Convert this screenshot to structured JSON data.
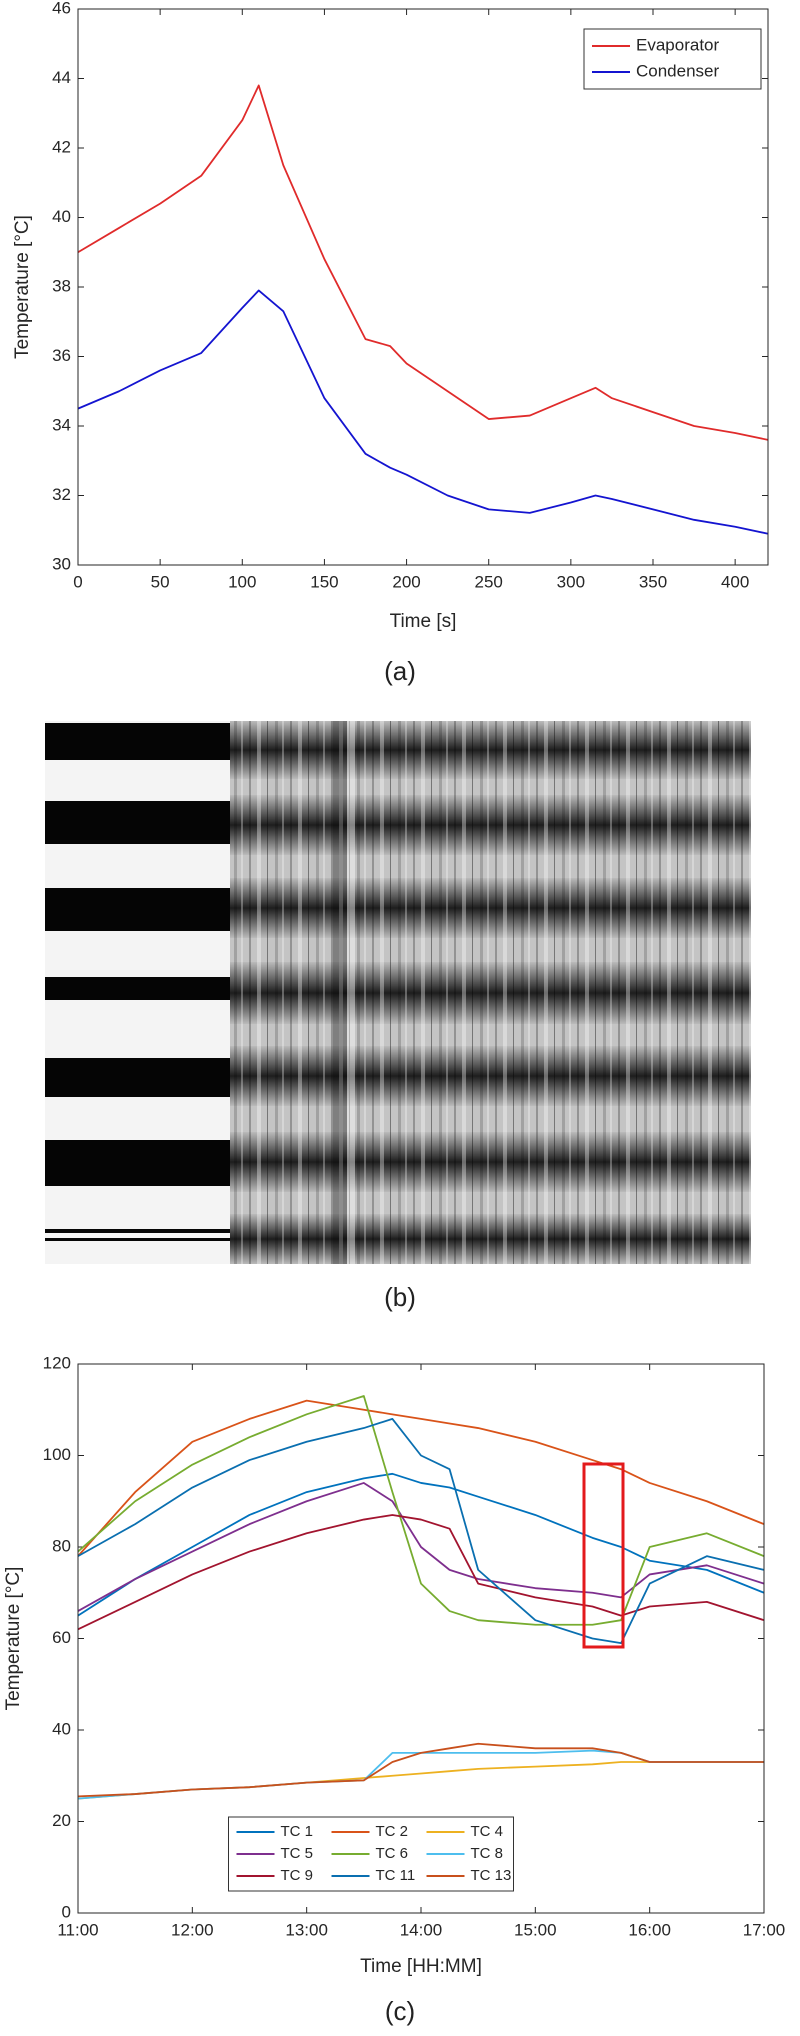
{
  "captions": [
    "(a)",
    "(b)",
    "(c)"
  ],
  "chart_data": [
    {
      "type": "line",
      "x_label": "Time [s]",
      "y_label": "Temperature [°C]",
      "x": [
        0,
        25,
        50,
        75,
        100,
        110,
        125,
        150,
        175,
        190,
        200,
        225,
        250,
        275,
        300,
        315,
        325,
        350,
        375,
        400,
        420
      ],
      "xlim": [
        0,
        420
      ],
      "xticks": [
        0,
        50,
        100,
        150,
        200,
        250,
        300,
        350,
        400
      ],
      "ylim": [
        30,
        46
      ],
      "yticks": [
        30,
        32,
        34,
        36,
        38,
        40,
        42,
        44,
        46
      ],
      "legend": "upper right",
      "series": [
        {
          "name": "Evaporator",
          "color": "#e02b2b",
          "values": [
            39,
            39.7,
            40.4,
            41.2,
            42.8,
            43.8,
            41.5,
            38.8,
            36.5,
            36.3,
            35.8,
            35.0,
            34.2,
            34.3,
            34.8,
            35.1,
            34.8,
            34.4,
            34.0,
            33.8,
            33.6
          ]
        },
        {
          "name": "Condenser",
          "color": "#1414d0",
          "values": [
            34.5,
            35,
            35.6,
            36.1,
            37.4,
            37.9,
            37.3,
            34.8,
            33.2,
            32.8,
            32.6,
            32.0,
            31.6,
            31.5,
            31.8,
            32.0,
            31.9,
            31.6,
            31.3,
            31.1,
            30.9
          ]
        }
      ]
    },
    {
      "type": "line",
      "x_label": "Time [HH:MM]",
      "y_label": "Temperature [°C]",
      "x": [
        11,
        11.5,
        12,
        12.5,
        13,
        13.5,
        13.75,
        14,
        14.25,
        14.5,
        15,
        15.5,
        15.75,
        16,
        16.5,
        17
      ],
      "xlim": [
        11,
        17
      ],
      "xticks": [
        {
          "value": 11,
          "label": "11:00"
        },
        {
          "value": 12,
          "label": "12:00"
        },
        {
          "value": 13,
          "label": "13:00"
        },
        {
          "value": 14,
          "label": "14:00"
        },
        {
          "value": 15,
          "label": "15:00"
        },
        {
          "value": 16,
          "label": "16:00"
        },
        {
          "value": 17,
          "label": "17:00"
        }
      ],
      "ylim": [
        0,
        120
      ],
      "yticks": [
        0,
        20,
        40,
        60,
        80,
        100,
        120
      ],
      "legend": "lower center",
      "series": [
        {
          "name": "TC 1",
          "color": "#0072bd",
          "values": [
            65,
            73,
            80,
            87,
            92,
            95,
            96,
            94,
            93,
            91,
            87,
            82,
            80,
            77,
            75,
            70
          ]
        },
        {
          "name": "TC 2",
          "color": "#d95319",
          "values": [
            78,
            92,
            103,
            108,
            112,
            110,
            109,
            108,
            107,
            106,
            103,
            99,
            97,
            94,
            90,
            85
          ]
        },
        {
          "name": "TC 4",
          "color": "#edb120",
          "values": [
            25,
            26,
            27,
            27.5,
            28.5,
            29.5,
            30,
            30.5,
            31,
            31.5,
            32,
            32.5,
            33,
            33,
            33,
            33
          ]
        },
        {
          "name": "TC 5",
          "color": "#7e2f8e",
          "values": [
            66,
            73,
            79,
            85,
            90,
            94,
            90,
            80,
            75,
            73,
            71,
            70,
            69,
            74,
            76,
            72
          ]
        },
        {
          "name": "TC 6",
          "color": "#77ac30",
          "values": [
            79,
            90,
            98,
            104,
            109,
            113,
            92,
            72,
            66,
            64,
            63,
            63,
            64,
            80,
            83,
            78
          ]
        },
        {
          "name": "TC 8",
          "color": "#4dbeee",
          "values": [
            25,
            26,
            27,
            27.5,
            28.5,
            29,
            35,
            35,
            35,
            35,
            35,
            35.5,
            35,
            33,
            33,
            33
          ]
        },
        {
          "name": "TC 9",
          "color": "#a2142f",
          "values": [
            62,
            68,
            74,
            79,
            83,
            86,
            87,
            86,
            84,
            72,
            69,
            67,
            65,
            67,
            68,
            64
          ]
        },
        {
          "name": "TC 11",
          "color": "#0a6fb0",
          "values": [
            78,
            85,
            93,
            99,
            103,
            106,
            108,
            100,
            97,
            75,
            64,
            60,
            59,
            72,
            78,
            75
          ]
        },
        {
          "name": "TC 13",
          "color": "#c8501c",
          "values": [
            25.5,
            26,
            27,
            27.5,
            28.5,
            29,
            33,
            35,
            36,
            37,
            36,
            36,
            35,
            33,
            33,
            33
          ]
        }
      ]
    }
  ]
}
